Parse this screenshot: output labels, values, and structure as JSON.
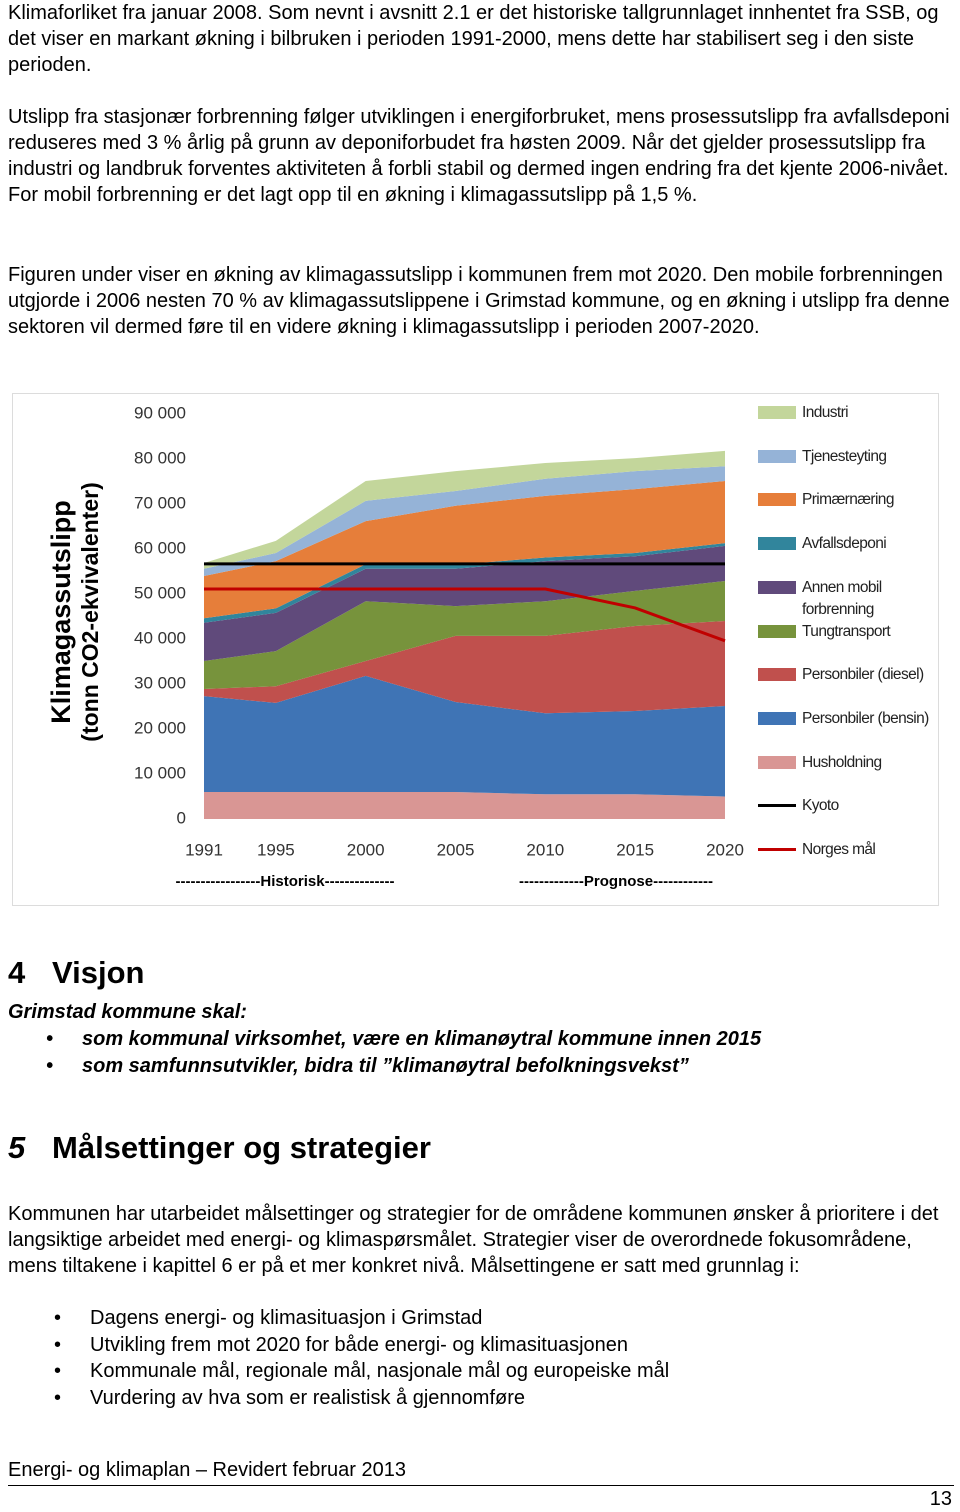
{
  "paragraphs": [
    "Klimaforliket fra januar 2008. Som nevnt i avsnitt 2.1 er det historiske tallgrunnlaget innhentet fra SSB, og det viser en markant økning i bilbruken i perioden 1991-2000, mens dette har stabilisert seg i den siste perioden.",
    "Utslipp fra stasjonær forbrenning følger utviklingen i energiforbruket, mens prosessutslipp fra avfallsdeponi reduseres med 3 % årlig på grunn av deponiforbudet fra høsten 2009. Når det gjelder prosessutslipp fra industri og landbruk forventes aktiviteten å forbli stabil og dermed ingen endring fra det kjente 2006-nivået. For mobil forbrenning er det lagt opp til en økning i klimagassutslipp på 1,5 %.",
    "Figuren under viser en økning av klimagassutslipp i kommunen frem mot 2020. Den mobile forbrenningen utgjorde i 2006 nesten 70 % av klimagassutslippene i Grimstad kommune, og en økning i utslipp fra denne sektoren vil dermed føre til en videre økning i klimagassutslipp i perioden 2007-2020."
  ],
  "chart_data": {
    "type": "stacked_area",
    "y_label": "Klimagassutslipp",
    "y_label_unit": "(tonn CO2-ekvivalenter)",
    "annotations": [
      "-----------------Historisk--------------",
      "-------------Prognose------------"
    ],
    "x": [
      1991,
      1995,
      2000,
      2005,
      2010,
      2015,
      2020
    ],
    "xlim": [
      1991,
      2020
    ],
    "xticks": [
      1991,
      1995,
      2000,
      2005,
      2010,
      2015,
      2020
    ],
    "ylim": [
      0,
      90000
    ],
    "yticks": [
      0,
      {
        "value": 10000,
        "label": "10 000"
      },
      {
        "value": 20000,
        "label": "20 000"
      },
      {
        "value": 30000,
        "label": "30 000"
      },
      {
        "value": 40000,
        "label": "40 000"
      },
      {
        "value": 50000,
        "label": "50 000"
      },
      {
        "value": 60000,
        "label": "60 000"
      },
      {
        "value": 70000,
        "label": "70 000"
      },
      {
        "value": 80000,
        "label": "80 000"
      },
      {
        "value": 90000,
        "label": "90 000"
      }
    ],
    "grid": false,
    "series": [
      {
        "name": "Husholdning",
        "color": "#d99694",
        "values": [
          6000,
          6000,
          6000,
          6000,
          5500,
          5500,
          5000
        ]
      },
      {
        "name": "Personbiler (bensin)",
        "color": "#3f74b5",
        "values": [
          21300,
          19800,
          25800,
          20000,
          18000,
          18500,
          20100
        ]
      },
      {
        "name": "Personbiler (diesel)",
        "color": "#c0504d",
        "values": [
          1600,
          3700,
          3300,
          14700,
          17200,
          18900,
          18900
        ]
      },
      {
        "name": "Tungtransport",
        "color": "#77933c",
        "values": [
          6200,
          7800,
          13300,
          6600,
          7700,
          7800,
          8900
        ]
      },
      {
        "name": "Annen mobil forbrenning",
        "color": "#604a7b",
        "values": [
          8500,
          8500,
          7200,
          8300,
          8900,
          7700,
          7800
        ]
      },
      {
        "name": "Avfallsdeponi",
        "color": "#31859c",
        "values": [
          1000,
          1000,
          1000,
          900,
          800,
          700,
          600
        ]
      },
      {
        "name": "Primærnæring",
        "color": "#e67e3a",
        "values": [
          9400,
          10500,
          9600,
          13100,
          13700,
          14200,
          13800
        ]
      },
      {
        "name": "Tjenesteyting",
        "color": "#95b3d7",
        "values": [
          1600,
          1800,
          4500,
          3300,
          3800,
          4000,
          3300
        ]
      },
      {
        "name": "Industri",
        "color": "#c3d69b",
        "values": [
          1300,
          2700,
          4400,
          4400,
          3500,
          2900,
          3400
        ]
      }
    ],
    "lines": [
      {
        "name": "Kyoto",
        "color": "#000000",
        "values": [
          56700,
          56700,
          56700,
          56700,
          56700,
          56700,
          56700
        ]
      },
      {
        "name": "Norges mål",
        "color": "#c00000",
        "values": [
          51100,
          51100,
          51100,
          51100,
          51100,
          46900,
          39600
        ]
      }
    ]
  },
  "section4": {
    "number": "4",
    "title": "Visjon",
    "lead": "Grimstad kommune skal:",
    "bullets": [
      "som kommunal virksomhet, være en klimanøytral kommune innen 2015",
      "som samfunnsutvikler, bidra til ”klimanøytral befolkningsvekst”"
    ]
  },
  "section5": {
    "number": "5",
    "title": "Målsettinger og strategier",
    "paragraph": "Kommunen har utarbeidet målsettinger og strategier for de områdene kommunen ønsker å prioritere i det langsiktige arbeidet med energi- og klimaspørsmålet. Strategier viser de overordnede fokusområdene, mens tiltakene i kapittel 6 er på et mer konkret nivå. Målsettingene er satt med grunnlag i:",
    "bullets": [
      "Dagens energi- og klimasituasjon i Grimstad",
      "Utvikling frem mot 2020 for både energi- og klimasituasjonen",
      "Kommunale mål, regionale mål, nasjonale mål og europeiske mål",
      "Vurdering av hva som er realistisk å gjennomføre"
    ]
  },
  "footer": {
    "text": "Energi- og klimaplan – Revidert februar 2013",
    "page": "13"
  }
}
